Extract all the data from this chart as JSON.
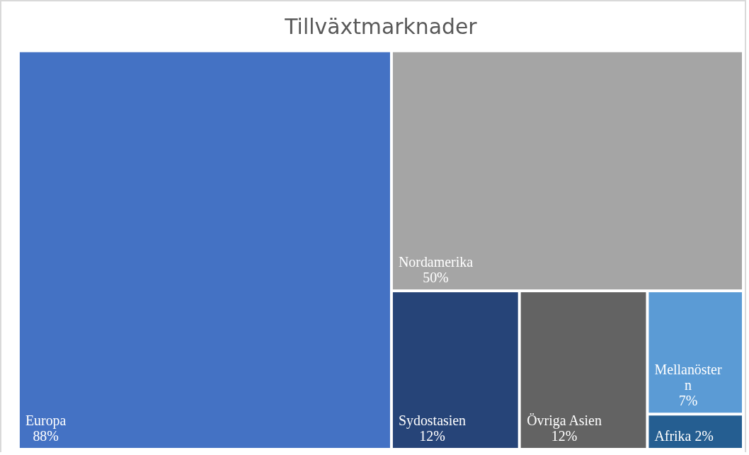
{
  "chart_data": {
    "type": "other",
    "title": "Tillväxtmarknader",
    "categories": [
      "Europa",
      "Nordamerika",
      "Sydostasien",
      "Övriga Asien",
      "Mellanöstern",
      "Afrika"
    ],
    "values": [
      88,
      50,
      12,
      12,
      7,
      2
    ],
    "value_labels": [
      "88%",
      "50%",
      "12%",
      "12%",
      "7%",
      "2%"
    ],
    "colors": [
      "#4472c4",
      "#a5a5a5",
      "#264478",
      "#636363",
      "#5b9bd5",
      "#255e91"
    ]
  }
}
